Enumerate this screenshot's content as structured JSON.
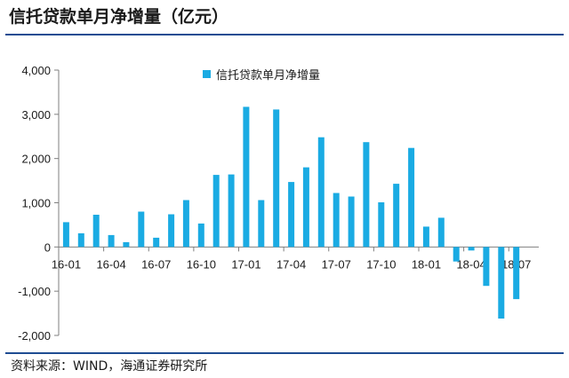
{
  "header": {
    "title": "信托贷款单月净增量（亿元）"
  },
  "footer": {
    "source": "资料来源：WIND，海通证券研究所"
  },
  "colors": {
    "bar": "#1aabe3",
    "rule": "#1e4c92",
    "axis": "#7f7f7f"
  },
  "chart_data": {
    "type": "bar",
    "title": "信托贷款单月净增量（亿元）",
    "xlabel": "",
    "ylabel": "",
    "ylim": [
      -2000,
      4000
    ],
    "yticks": [
      -2000,
      -1000,
      0,
      1000,
      2000,
      3000,
      4000
    ],
    "ytick_labels": [
      "-2,000",
      "-1,000",
      "0",
      "1,000",
      "2,000",
      "3,000",
      "4,000"
    ],
    "grid": false,
    "legend_position": "top-center",
    "categories": [
      "16-01",
      "16-02",
      "16-03",
      "16-04",
      "16-05",
      "16-06",
      "16-07",
      "16-08",
      "16-09",
      "16-10",
      "16-11",
      "16-12",
      "17-01",
      "17-02",
      "17-03",
      "17-04",
      "17-05",
      "17-06",
      "17-07",
      "17-08",
      "17-09",
      "17-10",
      "17-11",
      "17-12",
      "18-01",
      "18-02",
      "18-03",
      "18-04",
      "18-05",
      "18-06",
      "18-07",
      "18-08"
    ],
    "xtick_labels": [
      "16-01",
      "16-04",
      "16-07",
      "16-10",
      "17-01",
      "17-04",
      "17-07",
      "17-10",
      "18-01",
      "18-04",
      "18-07"
    ],
    "series": [
      {
        "name": "信托贷款单月净增量",
        "values": [
          560,
          310,
          730,
          270,
          110,
          800,
          210,
          740,
          1060,
          530,
          1630,
          1640,
          3170,
          1060,
          3110,
          1470,
          1800,
          2480,
          1220,
          1140,
          2370,
          1010,
          1430,
          2240,
          460,
          660,
          -330,
          -80,
          -880,
          -1620,
          -1180,
          0
        ]
      }
    ]
  }
}
